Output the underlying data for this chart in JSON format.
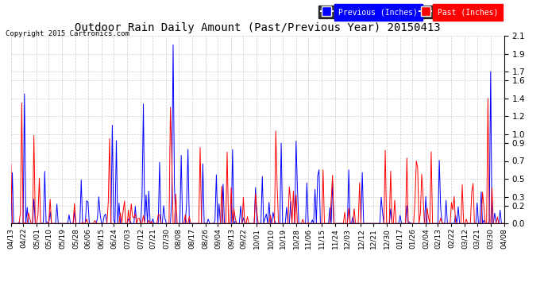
{
  "title": "Outdoor Rain Daily Amount (Past/Previous Year) 20150413",
  "copyright": "Copyright 2015 Cartronics.com",
  "legend_labels": [
    "Previous (Inches)",
    "Past (Inches)"
  ],
  "legend_colors": [
    "blue",
    "red"
  ],
  "legend_bg_colors": [
    "blue",
    "red"
  ],
  "y_ticks": [
    0.0,
    0.2,
    0.3,
    0.5,
    0.7,
    0.9,
    1.0,
    1.2,
    1.4,
    1.6,
    1.7,
    1.9,
    2.1
  ],
  "ylim": [
    0.0,
    2.1
  ],
  "x_labels": [
    "04/13",
    "04/22",
    "05/01",
    "05/10",
    "05/19",
    "05/28",
    "06/06",
    "06/15",
    "06/24",
    "07/03",
    "07/12",
    "07/21",
    "07/30",
    "08/08",
    "08/17",
    "08/26",
    "09/04",
    "09/13",
    "09/22",
    "10/01",
    "10/10",
    "10/19",
    "10/28",
    "11/06",
    "11/15",
    "11/24",
    "12/03",
    "12/12",
    "12/21",
    "12/30",
    "01/17",
    "01/26",
    "02/04",
    "02/13",
    "02/22",
    "03/12",
    "03/21",
    "03/30",
    "04/08"
  ],
  "background_color": "#ffffff",
  "grid_color": "#cccccc",
  "line_color_prev": "blue",
  "line_color_past": "red",
  "n_points": 366
}
